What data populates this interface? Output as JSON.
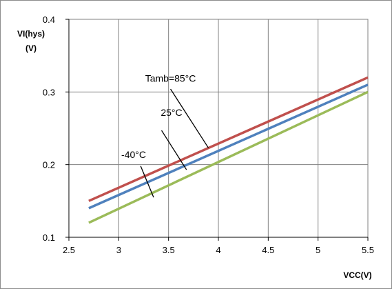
{
  "chart_data": {
    "type": "line",
    "title": "",
    "ylabel_lines": [
      "VI(hys)",
      "(V)"
    ],
    "xlabel": "VCC(V)",
    "xlim": [
      2.5,
      5.5
    ],
    "ylim": [
      0.1,
      0.4
    ],
    "xticks": [
      "2.5",
      "3",
      "3.5",
      "4",
      "4.5",
      "5",
      "5.5"
    ],
    "yticks": [
      "0.1",
      "0.2",
      "0.3",
      "0.4"
    ],
    "grid": true,
    "series": [
      {
        "name": "Tamb=85°C",
        "color": "#c0504d",
        "x": [
          2.7,
          5.5
        ],
        "y": [
          0.15,
          0.32
        ],
        "label_at": [
          3.52,
          0.314
        ],
        "pointer_from": [
          3.52,
          0.304
        ],
        "pointer_to": [
          3.9,
          0.223
        ]
      },
      {
        "name": "25°C",
        "color": "#4f81bd",
        "x": [
          2.7,
          5.5
        ],
        "y": [
          0.14,
          0.31
        ],
        "label_at": [
          3.53,
          0.267
        ],
        "pointer_from": [
          3.43,
          0.247
        ],
        "pointer_to": [
          3.68,
          0.193
        ]
      },
      {
        "name": "-40°C",
        "color": "#9bbb59",
        "x": [
          2.7,
          5.5
        ],
        "y": [
          0.12,
          0.3
        ],
        "label_at": [
          3.15,
          0.209
        ],
        "pointer_from": [
          3.22,
          0.198
        ],
        "pointer_to": [
          3.35,
          0.155
        ]
      }
    ]
  }
}
